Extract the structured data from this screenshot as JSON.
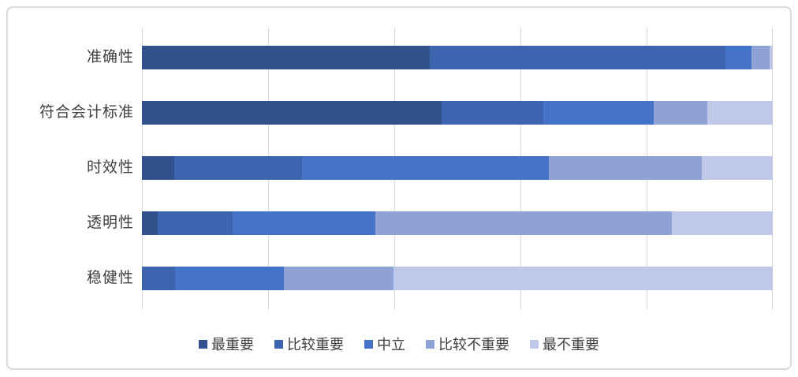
{
  "chart_frame": {
    "background": "#ffffff",
    "border_color": "#d9d9d9",
    "gridline_color": "#d9d9d9",
    "label_color": "#3f3f3f"
  },
  "chart_data": {
    "type": "bar",
    "orientation": "horizontal",
    "stacked": true,
    "title": "",
    "xlabel": "",
    "ylabel": "",
    "xlim": [
      0,
      100
    ],
    "x_unit": "percent",
    "x_tick_labels_visible": false,
    "gridline_interval": 20,
    "grid": true,
    "legend_position": "bottom",
    "categories": [
      "准确性",
      "符合会计标准",
      "时效性",
      "透明性",
      "稳健性"
    ],
    "series": [
      {
        "name": "最重要",
        "color": "#32528E",
        "values": [
          45.6,
          47.5,
          5.1,
          2.5,
          0.0
        ]
      },
      {
        "name": "比较重要",
        "color": "#3D64AE",
        "values": [
          46.9,
          16.1,
          20.3,
          11.9,
          5.3
        ]
      },
      {
        "name": "中立",
        "color": "#4573C9",
        "values": [
          4.1,
          17.5,
          39.1,
          22.6,
          17.2
        ]
      },
      {
        "name": "比较不重要",
        "color": "#8FA2D6",
        "values": [
          2.9,
          8.5,
          24.3,
          47.0,
          17.4
        ]
      },
      {
        "name": "最不重要",
        "color": "#BFC8E8",
        "values": [
          0.5,
          10.4,
          11.2,
          16.0,
          60.1
        ]
      }
    ]
  }
}
